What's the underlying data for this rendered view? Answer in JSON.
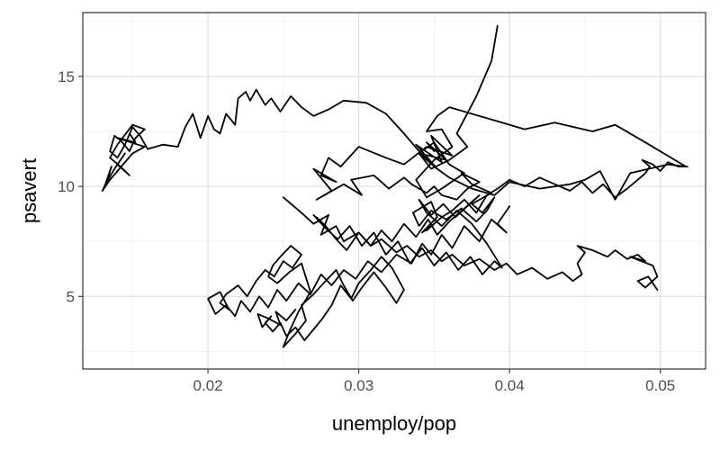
{
  "chart_data": {
    "type": "line",
    "xlabel": "unemploy/pop",
    "ylabel": "psavert",
    "xlim": [
      0.0117,
      0.053
    ],
    "ylim": [
      1.7,
      17.9
    ],
    "x_ticks": [
      0.02,
      0.03,
      0.04,
      0.05
    ],
    "x_tick_labels": [
      "0.02",
      "0.03",
      "0.04",
      "0.05"
    ],
    "y_ticks": [
      5,
      10,
      15
    ],
    "y_tick_labels": [
      "5",
      "10",
      "15"
    ],
    "x_minor_ticks": [
      0.015,
      0.025,
      0.035,
      0.045
    ],
    "y_minor_ticks": [
      2.5,
      7.5,
      12.5,
      17.5
    ],
    "grid": true,
    "theme": "bw",
    "line_color": "#000000",
    "series": [
      {
        "x": [
          0.0392,
          0.0388,
          0.0378,
          0.0365,
          0.0372,
          0.036,
          0.0348,
          0.034,
          0.035,
          0.036,
          0.037,
          0.0355,
          0.0345,
          0.0338,
          0.035,
          0.0362,
          0.0355,
          0.0345,
          0.0352,
          0.036,
          0.039,
          0.041,
          0.043,
          0.0455,
          0.047,
          0.049,
          0.0517,
          0.0505,
          0.048,
          0.047,
          0.046,
          0.045,
          0.044,
          0.042,
          0.04,
          0.039,
          0.0375,
          0.036,
          0.035,
          0.034,
          0.033,
          0.0318,
          0.0305,
          0.029,
          0.028,
          0.027,
          0.0262,
          0.0255,
          0.0248,
          0.0242,
          0.0238,
          0.0232,
          0.0228,
          0.0225,
          0.022,
          0.0218,
          0.0212,
          0.0208,
          0.0204,
          0.02,
          0.0195,
          0.019,
          0.0185,
          0.018,
          0.017,
          0.016,
          0.0155,
          0.015,
          0.0145,
          0.014,
          0.0135,
          0.0138,
          0.0142,
          0.0148,
          0.0152,
          0.0158,
          0.015,
          0.014,
          0.0135,
          0.0142,
          0.0148,
          0.014,
          0.0145,
          0.0138,
          0.0133,
          0.0136,
          0.0132,
          0.013
        ],
        "y": [
          17.3,
          15.7,
          14.1,
          12.4,
          11.8,
          11.2,
          10.8,
          11.5,
          12.0,
          11.0,
          10.6,
          9.9,
          9.5,
          10.3,
          11.2,
          11.8,
          12.6,
          12.5,
          13.2,
          13.6,
          13.0,
          12.6,
          12.9,
          12.5,
          12.8,
          12.0,
          10.9,
          11.0,
          10.6,
          9.4,
          10.7,
          10.3,
          10.1,
          9.9,
          10.2,
          9.6,
          9.9,
          10.4,
          10.9,
          11.6,
          12.4,
          13.3,
          13.8,
          13.9,
          13.5,
          13.2,
          13.6,
          14.1,
          13.4,
          14.0,
          13.7,
          14.4,
          13.9,
          14.3,
          14.0,
          12.8,
          13.3,
          12.4,
          12.6,
          13.2,
          12.2,
          13.3,
          12.7,
          11.8,
          11.9,
          11.7,
          12.3,
          12.7,
          11.9,
          11.3,
          11.6,
          12.3,
          12.1,
          11.6,
          12.2,
          12.6,
          12.8,
          11.9,
          11.3,
          10.9,
          10.5,
          11.0,
          11.5,
          10.8,
          10.2,
          10.9,
          10.1,
          9.8
        ]
      },
      {
        "x": [
          0.013,
          0.0135,
          0.015,
          0.0158,
          0.014,
          0.0152,
          0.0148
        ],
        "y": [
          9.8,
          10.3,
          11.5,
          11.8,
          12.2,
          12.0,
          12.4
        ]
      },
      {
        "x": [
          0.035,
          0.0345,
          0.0358,
          0.034,
          0.0352,
          0.0338,
          0.0355,
          0.0348,
          0.0362,
          0.0345,
          0.033,
          0.0318,
          0.03,
          0.0288,
          0.028,
          0.0275,
          0.0285,
          0.027,
          0.0282,
          0.0272,
          0.029,
          0.0302,
          0.0295,
          0.031,
          0.032,
          0.033,
          0.0335,
          0.0345,
          0.035,
          0.0355,
          0.0365,
          0.0372,
          0.038,
          0.0368,
          0.0375,
          0.0388,
          0.0375,
          0.0382,
          0.039,
          0.0385,
          0.0378,
          0.0368,
          0.0358,
          0.0348,
          0.034,
          0.0336,
          0.0348,
          0.0352,
          0.0342,
          0.035,
          0.0345
        ],
        "y": [
          11.6,
          12.0,
          11.2,
          11.5,
          10.8,
          11.9,
          11.1,
          12.3,
          11.4,
          11.8,
          11.0,
          11.3,
          11.8,
          10.9,
          11.3,
          10.5,
          10.2,
          10.8,
          9.8,
          9.4,
          10.1,
          9.6,
          10.3,
          10.5,
          9.9,
          10.4,
          10.1,
          9.7,
          10.0,
          9.6,
          9.4,
          9.9,
          10.2,
          10.6,
          10.1,
          9.7,
          9.2,
          8.8,
          9.5,
          8.9,
          8.4,
          9.0,
          8.5,
          8.9,
          8.2,
          8.8,
          9.3,
          8.6,
          7.9,
          8.3,
          8.0
        ]
      },
      {
        "x": [
          0.0345,
          0.0355,
          0.0362,
          0.037,
          0.0378,
          0.0385,
          0.0392,
          0.04,
          0.041,
          0.042,
          0.043,
          0.044,
          0.0448,
          0.0455,
          0.0462,
          0.047,
          0.0478,
          0.0485,
          0.049,
          0.0493,
          0.0488,
          0.0495,
          0.05,
          0.0505,
          0.0512,
          0.0518
        ],
        "y": [
          8.0,
          8.6,
          8.9,
          9.4,
          8.8,
          9.6,
          9.9,
          10.3,
          10.0,
          10.4,
          10.1,
          9.8,
          10.2,
          9.7,
          10.1,
          9.5,
          9.9,
          10.3,
          10.6,
          10.9,
          11.2,
          11.0,
          10.7,
          11.1,
          10.9,
          10.9
        ]
      },
      {
        "x": [
          0.025,
          0.0262,
          0.027,
          0.028,
          0.0275,
          0.0285,
          0.029,
          0.03,
          0.0308,
          0.0315,
          0.0325,
          0.0332,
          0.034,
          0.0348,
          0.0355,
          0.0362,
          0.037,
          0.038,
          0.039,
          0.0398,
          0.0405,
          0.0415,
          0.0425,
          0.0435,
          0.0442,
          0.0448,
          0.0445,
          0.045,
          0.0445,
          0.0455,
          0.0465,
          0.047,
          0.0478,
          0.0485,
          0.049,
          0.048,
          0.0495,
          0.0498,
          0.049,
          0.0485,
          0.0492,
          0.0498
        ],
        "y": [
          9.5,
          8.8,
          8.3,
          8.7,
          7.8,
          8.2,
          7.5,
          7.9,
          7.3,
          7.6,
          7.0,
          7.3,
          6.8,
          7.1,
          6.6,
          6.9,
          6.4,
          6.7,
          6.2,
          6.5,
          6.0,
          6.3,
          5.8,
          6.1,
          5.7,
          6.0,
          6.5,
          7.0,
          7.3,
          7.1,
          6.8,
          7.1,
          6.7,
          6.9,
          6.6,
          6.8,
          6.4,
          5.9,
          5.4,
          5.7,
          5.9,
          5.3
        ]
      },
      {
        "x": [
          0.04,
          0.0392,
          0.0398,
          0.0388,
          0.038,
          0.037,
          0.0362,
          0.0355,
          0.0348,
          0.0342,
          0.0335,
          0.0325,
          0.0315,
          0.0306,
          0.0298,
          0.029,
          0.0282,
          0.0275,
          0.0268,
          0.026,
          0.0252,
          0.0246,
          0.024,
          0.0234,
          0.0228,
          0.0222,
          0.0218,
          0.0212,
          0.0205,
          0.02,
          0.0208,
          0.0214,
          0.0208,
          0.0212,
          0.022,
          0.0226,
          0.0232,
          0.0238,
          0.0244,
          0.025,
          0.0256,
          0.0262,
          0.0255,
          0.0248,
          0.0243,
          0.024,
          0.0246,
          0.0254,
          0.0262
        ],
        "y": [
          9.1,
          8.3,
          7.9,
          8.5,
          7.5,
          8.2,
          7.2,
          7.8,
          6.9,
          7.4,
          6.5,
          6.9,
          6.1,
          6.6,
          5.8,
          6.2,
          5.5,
          6.0,
          5.1,
          5.6,
          4.8,
          5.3,
          4.5,
          5.0,
          4.3,
          4.8,
          4.1,
          4.6,
          4.2,
          4.9,
          5.2,
          4.4,
          4.7,
          5.1,
          5.5,
          5.0,
          5.7,
          6.2,
          5.9,
          6.6,
          6.3,
          6.9,
          7.3,
          6.8,
          6.4,
          5.9,
          5.6,
          6.1,
          6.5
        ]
      },
      {
        "x": [
          0.0262,
          0.0268,
          0.026,
          0.0254,
          0.025,
          0.0258,
          0.0265,
          0.0262,
          0.027,
          0.0278,
          0.0285,
          0.029,
          0.0296,
          0.0302,
          0.031,
          0.0318,
          0.0325,
          0.033,
          0.0322,
          0.0315,
          0.0308,
          0.03,
          0.0295,
          0.0288,
          0.0282,
          0.0276,
          0.027,
          0.0264,
          0.0258,
          0.0252,
          0.0248,
          0.0243,
          0.0238,
          0.0242,
          0.0236,
          0.0233,
          0.024,
          0.0248,
          0.0245,
          0.0252,
          0.0258
        ],
        "y": [
          6.5,
          5.2,
          4.3,
          3.4,
          2.7,
          3.3,
          3.9,
          4.6,
          5.1,
          5.7,
          6.2,
          5.5,
          4.8,
          5.4,
          6.1,
          5.4,
          4.7,
          5.3,
          6.3,
          6.8,
          6.2,
          5.6,
          4.9,
          5.5,
          4.6,
          4.0,
          3.5,
          3.0,
          3.6,
          3.2,
          3.8,
          3.4,
          3.8,
          4.1,
          3.6,
          4.2,
          4.0,
          3.7,
          4.3,
          3.9,
          4.4
        ]
      },
      {
        "x": [
          0.027,
          0.0278,
          0.0286,
          0.0294,
          0.0302,
          0.031,
          0.0318,
          0.0326,
          0.0334,
          0.0342,
          0.035,
          0.0358,
          0.0366,
          0.0374,
          0.0382,
          0.039,
          0.0395,
          0.0385,
          0.0375,
          0.0365,
          0.0355,
          0.0345,
          0.034,
          0.0348,
          0.0356,
          0.0364,
          0.0372,
          0.038,
          0.037,
          0.036,
          0.0352,
          0.0346,
          0.0338,
          0.033,
          0.0322,
          0.0315,
          0.0308,
          0.03,
          0.0292,
          0.0285,
          0.0278,
          0.0272
        ],
        "y": [
          8.7,
          8.1,
          7.6,
          8.2,
          7.3,
          7.9,
          6.9,
          7.5,
          6.5,
          7.2,
          6.4,
          7.0,
          6.2,
          6.8,
          6.0,
          6.6,
          6.3,
          7.4,
          8.3,
          8.9,
          8.2,
          8.8,
          9.4,
          8.7,
          9.2,
          8.6,
          9.1,
          9.6,
          9.0,
          8.4,
          7.8,
          8.5,
          7.7,
          8.3,
          7.5,
          8.0,
          7.3,
          7.9,
          7.1,
          7.6,
          8.2,
          8.6
        ]
      }
    ]
  }
}
